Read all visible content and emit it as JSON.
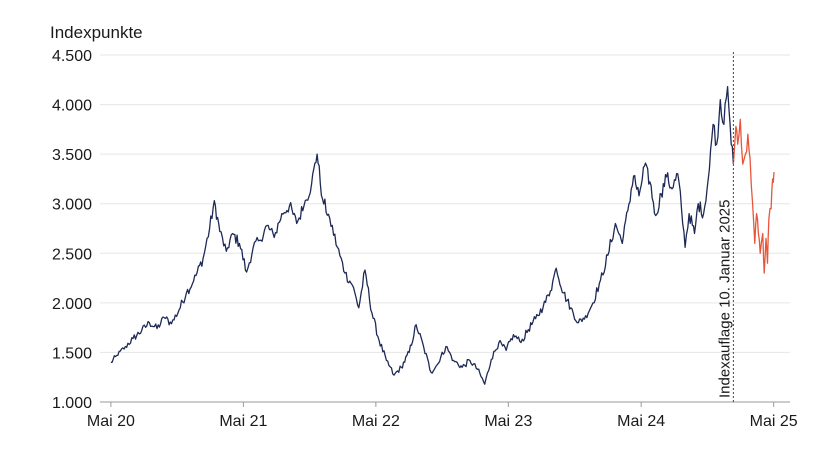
{
  "chart_data": {
    "type": "line",
    "ylabel": "Indexpunkte",
    "ylim": [
      1000,
      4500
    ],
    "yticks": [
      1000,
      1500,
      2000,
      2500,
      3000,
      3500,
      4000,
      4500
    ],
    "ytick_labels": [
      "1.000",
      "1.500",
      "2.000",
      "2.500",
      "3.000",
      "3.500",
      "4.000",
      "4.500"
    ],
    "xlim": [
      "2020-04-01",
      "2025-06-15"
    ],
    "xticks": [
      {
        "date": "2020-05-01",
        "label": "Mai 20"
      },
      {
        "date": "2021-05-01",
        "label": "Mai 21"
      },
      {
        "date": "2022-05-01",
        "label": "Mai 22"
      },
      {
        "date": "2023-05-01",
        "label": "Mai 23"
      },
      {
        "date": "2024-05-01",
        "label": "Mai 24"
      },
      {
        "date": "2025-05-01",
        "label": "Mai 25"
      }
    ],
    "grid": true,
    "annotation": {
      "date": "2025-01-10",
      "label": "Indexauflage 10. Januar 2025"
    },
    "colors": {
      "backtest": "#1e2a55",
      "live": "#e8563a",
      "grid": "#e6e6e6",
      "axis": "#9a9a9a",
      "marker": "#444444"
    },
    "series": [
      {
        "values": [
          [
            "2020-05-01",
            1400
          ],
          [
            "2020-05-20",
            1470
          ],
          [
            "2020-06-10",
            1560
          ],
          [
            "2020-07-01",
            1640
          ],
          [
            "2020-07-25",
            1720
          ],
          [
            "2020-08-15",
            1800
          ],
          [
            "2020-09-05",
            1740
          ],
          [
            "2020-09-25",
            1850
          ],
          [
            "2020-10-15",
            1790
          ],
          [
            "2020-11-05",
            1930
          ],
          [
            "2020-11-25",
            2100
          ],
          [
            "2020-12-15",
            2220
          ],
          [
            "2021-01-10",
            2450
          ],
          [
            "2021-01-28",
            2750
          ],
          [
            "2021-02-10",
            3030
          ],
          [
            "2021-02-25",
            2720
          ],
          [
            "2021-03-15",
            2520
          ],
          [
            "2021-04-01",
            2700
          ],
          [
            "2021-04-20",
            2600
          ],
          [
            "2021-05-10",
            2310
          ],
          [
            "2021-05-28",
            2560
          ],
          [
            "2021-06-15",
            2630
          ],
          [
            "2021-07-05",
            2780
          ],
          [
            "2021-07-25",
            2660
          ],
          [
            "2021-08-15",
            2900
          ],
          [
            "2021-09-05",
            2980
          ],
          [
            "2021-09-25",
            2800
          ],
          [
            "2021-10-15",
            2980
          ],
          [
            "2021-11-05",
            3200
          ],
          [
            "2021-11-20",
            3500
          ],
          [
            "2021-12-05",
            3050
          ],
          [
            "2021-12-25",
            2850
          ],
          [
            "2022-01-15",
            2560
          ],
          [
            "2022-02-05",
            2300
          ],
          [
            "2022-02-25",
            2180
          ],
          [
            "2022-03-15",
            1950
          ],
          [
            "2022-04-01",
            2330
          ],
          [
            "2022-04-20",
            1900
          ],
          [
            "2022-05-10",
            1620
          ],
          [
            "2022-05-30",
            1420
          ],
          [
            "2022-06-20",
            1270
          ],
          [
            "2022-07-10",
            1350
          ],
          [
            "2022-08-01",
            1500
          ],
          [
            "2022-08-20",
            1780
          ],
          [
            "2022-09-10",
            1550
          ],
          [
            "2022-09-30",
            1300
          ],
          [
            "2022-10-20",
            1390
          ],
          [
            "2022-11-10",
            1560
          ],
          [
            "2022-12-01",
            1420
          ],
          [
            "2022-12-25",
            1350
          ],
          [
            "2023-01-15",
            1420
          ],
          [
            "2023-02-05",
            1330
          ],
          [
            "2023-02-25",
            1180
          ],
          [
            "2023-03-15",
            1430
          ],
          [
            "2023-04-05",
            1600
          ],
          [
            "2023-04-25",
            1520
          ],
          [
            "2023-05-15",
            1680
          ],
          [
            "2023-06-05",
            1600
          ],
          [
            "2023-06-25",
            1730
          ],
          [
            "2023-07-15",
            1840
          ],
          [
            "2023-08-05",
            1960
          ],
          [
            "2023-08-25",
            2120
          ],
          [
            "2023-09-10",
            2350
          ],
          [
            "2023-09-30",
            2100
          ],
          [
            "2023-10-20",
            1950
          ],
          [
            "2023-11-10",
            1800
          ],
          [
            "2023-11-30",
            1870
          ],
          [
            "2023-12-20",
            2000
          ],
          [
            "2024-01-10",
            2230
          ],
          [
            "2024-01-30",
            2480
          ],
          [
            "2024-02-20",
            2800
          ],
          [
            "2024-03-10",
            2600
          ],
          [
            "2024-03-25",
            2930
          ],
          [
            "2024-04-10",
            3280
          ],
          [
            "2024-04-25",
            3080
          ],
          [
            "2024-05-10",
            3380
          ],
          [
            "2024-05-25",
            3220
          ],
          [
            "2024-06-10",
            2880
          ],
          [
            "2024-06-25",
            3100
          ],
          [
            "2024-07-10",
            3270
          ],
          [
            "2024-07-25",
            3150
          ],
          [
            "2024-08-10",
            3300
          ],
          [
            "2024-08-20",
            2950
          ],
          [
            "2024-08-30",
            2560
          ],
          [
            "2024-09-10",
            2900
          ],
          [
            "2024-09-25",
            2700
          ],
          [
            "2024-10-05",
            3000
          ],
          [
            "2024-10-20",
            2900
          ],
          [
            "2024-11-05",
            3350
          ],
          [
            "2024-11-15",
            3800
          ],
          [
            "2024-11-25",
            3600
          ],
          [
            "2024-12-05",
            4050
          ],
          [
            "2024-12-15",
            3800
          ],
          [
            "2024-12-25",
            4180
          ],
          [
            "2025-01-01",
            3800
          ],
          [
            "2025-01-10",
            3400
          ]
        ]
      },
      {
        "values": [
          [
            "2025-01-10",
            3400
          ],
          [
            "2025-01-17",
            3780
          ],
          [
            "2025-01-22",
            3600
          ],
          [
            "2025-01-29",
            3850
          ],
          [
            "2025-02-05",
            3400
          ],
          [
            "2025-02-12",
            3500
          ],
          [
            "2025-02-19",
            3700
          ],
          [
            "2025-02-25",
            3450
          ],
          [
            "2025-03-04",
            3000
          ],
          [
            "2025-03-10",
            2600
          ],
          [
            "2025-03-15",
            2900
          ],
          [
            "2025-03-20",
            2700
          ],
          [
            "2025-03-25",
            2500
          ],
          [
            "2025-04-01",
            2700
          ],
          [
            "2025-04-05",
            2300
          ],
          [
            "2025-04-10",
            2650
          ],
          [
            "2025-04-14",
            2400
          ],
          [
            "2025-04-18",
            2850
          ],
          [
            "2025-04-24",
            2950
          ],
          [
            "2025-04-28",
            3250
          ],
          [
            "2025-05-02",
            3320
          ]
        ]
      }
    ]
  }
}
